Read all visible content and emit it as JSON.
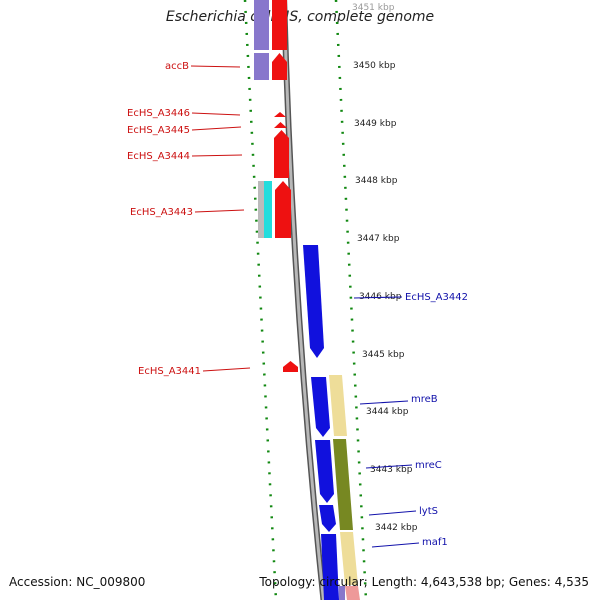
{
  "title": "Escherichia coli HS, complete genome",
  "footer": {
    "accession": "Accession: NC_009800",
    "summary": "Topology: circular; Length: 4,643,538 bp; Genes: 4,535"
  },
  "scale_labels": [
    "3451 kbp",
    "3450 kbp",
    "3449 kbp",
    "3448 kbp",
    "3447 kbp",
    "3446 kbp",
    "3445 kbp",
    "3444 kbp",
    "3443 kbp",
    "3442 kbp"
  ],
  "genes_reverse": [
    "accB",
    "EcHS_A3446",
    "EcHS_A3445",
    "EcHS_A3444",
    "EcHS_A3443",
    "EcHS_A3441"
  ],
  "genes_forward": [
    "EcHS_A3442",
    "mreB",
    "mreC",
    "lytS",
    "maf1"
  ],
  "colors": {
    "reverse_strand": "#ee1111",
    "forward_strand": "#1111dd",
    "backbone": "#888888",
    "tick": "#118811",
    "cog_purple": "#8877cc",
    "cog_cyan": "#22dddd",
    "cog_grey": "#bbbbbb",
    "cog_yellow": "#eedd99",
    "cog_olive": "#778822",
    "cog_pink": "#ee9999"
  }
}
